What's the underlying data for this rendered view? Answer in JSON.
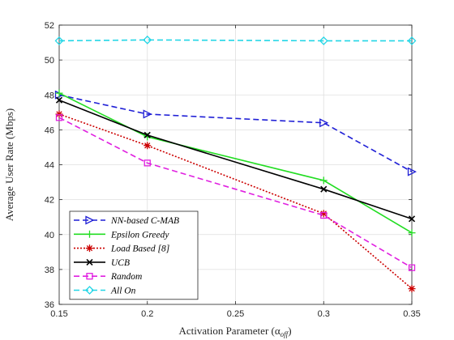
{
  "chart_data": {
    "type": "line",
    "xlabel": "Activation Parameter (α",
    "xlabel_sub": "off",
    "xlabel_close": ")",
    "ylabel": "Average User Rate (Mbps)",
    "xlim": [
      0.15,
      0.35
    ],
    "ylim": [
      36,
      52
    ],
    "xticks": [
      "0.15",
      "0.2",
      "0.25",
      "0.3",
      "0.35"
    ],
    "yticks": [
      "36",
      "38",
      "40",
      "42",
      "44",
      "46",
      "48",
      "50",
      "52"
    ],
    "grid": true,
    "legend_position": "bottom-left",
    "x": [
      0.15,
      0.2,
      0.3,
      0.35
    ],
    "series": [
      {
        "name": "NN-based C-MAB",
        "values": [
          48.0,
          46.9,
          46.4,
          43.6
        ],
        "color": "#1f1fd6",
        "dash": "7,4",
        "marker": "triangle-right"
      },
      {
        "name": "Epsilon Greedy",
        "values": [
          48.1,
          45.6,
          43.1,
          40.1
        ],
        "color": "#22dd22",
        "dash": "",
        "marker": "plus"
      },
      {
        "name": "Load Based [8]",
        "values": [
          46.9,
          45.1,
          41.2,
          36.9
        ],
        "color": "#cc0000",
        "dash": "2,2",
        "marker": "asterisk"
      },
      {
        "name": "UCB",
        "values": [
          47.7,
          45.7,
          42.6,
          40.9
        ],
        "color": "#000000",
        "dash": "",
        "marker": "x"
      },
      {
        "name": "Random",
        "values": [
          46.7,
          44.1,
          41.1,
          38.1
        ],
        "color": "#e020e0",
        "dash": "7,4",
        "marker": "square"
      },
      {
        "name": "All On",
        "values": [
          51.1,
          51.15,
          51.1,
          51.1
        ],
        "color": "#22d6e6",
        "dash": "7,4",
        "marker": "diamond"
      }
    ]
  }
}
